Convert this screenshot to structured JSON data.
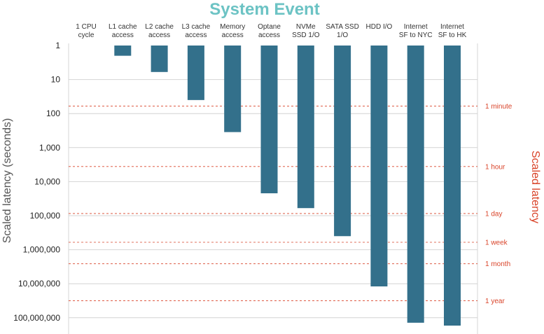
{
  "chart_data": {
    "type": "bar",
    "title": "System Event",
    "ylabel": "Scaled latency (seconds)",
    "y2label": "Scaled latency",
    "yscale": "log",
    "y_inverted": true,
    "ylim": [
      1,
      100000000
    ],
    "yticks": [
      {
        "value": 1,
        "label": "1"
      },
      {
        "value": 10,
        "label": "10"
      },
      {
        "value": 100,
        "label": "100"
      },
      {
        "value": 1000,
        "label": "1,000"
      },
      {
        "value": 10000,
        "label": "10,000"
      },
      {
        "value": 100000,
        "label": "100,000"
      },
      {
        "value": 1000000,
        "label": "1,000,000"
      },
      {
        "value": 10000000,
        "label": "10,000,000"
      },
      {
        "value": 100000000,
        "label": "100,000,000"
      }
    ],
    "categories": [
      [
        "1 CPU",
        "cycle"
      ],
      [
        "L1 cache",
        "access"
      ],
      [
        "L2 cache",
        "access"
      ],
      [
        "L3 cache",
        "access"
      ],
      [
        "Memory",
        "access"
      ],
      [
        "Optane",
        "access"
      ],
      [
        "NVMe",
        "SSD 1/O"
      ],
      [
        "SATA SSD",
        "1/O"
      ],
      [
        "HDD I/O"
      ],
      [
        "Internet",
        "SF to NYC"
      ],
      [
        "Internet",
        "SF to HK"
      ]
    ],
    "values": [
      1,
      2,
      6,
      40,
      350,
      22000,
      60000,
      400000,
      12000000,
      140000000,
      170000000
    ],
    "reference_lines": [
      {
        "label": "1 minute",
        "value": 60
      },
      {
        "label": "1 hour",
        "value": 3600
      },
      {
        "label": "1 day",
        "value": 86400
      },
      {
        "label": "1 week",
        "value": 604800
      },
      {
        "label": "1 month",
        "value": 2592000
      },
      {
        "label": "1 year",
        "value": 31536000
      }
    ],
    "colors": {
      "bar": "#33708b",
      "title": "#6cc3c4",
      "reference": "#d9442a"
    },
    "grid": true
  }
}
